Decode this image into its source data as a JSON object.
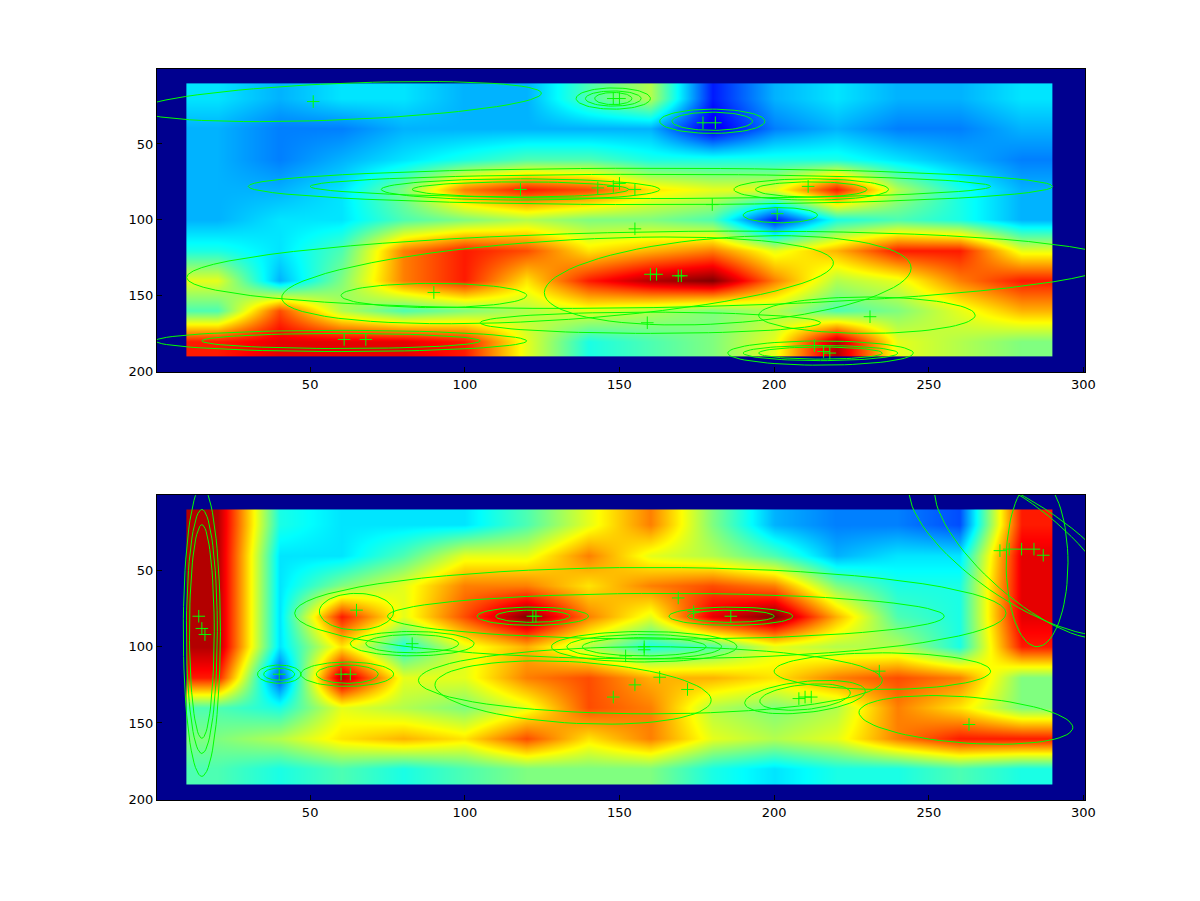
{
  "chart_data": [
    {
      "type": "heatmap",
      "x": [
        20,
        40,
        60,
        80,
        100,
        120,
        140,
        160,
        180,
        200,
        220,
        240,
        260,
        280
      ],
      "y": [
        20,
        40,
        60,
        80,
        100,
        120,
        140,
        160,
        180
      ],
      "cells": [
        [
          0.35,
          0.3,
          0.35,
          0.35,
          0.3,
          0.3,
          0.45,
          0.55,
          0.15,
          0.3,
          0.35,
          0.3,
          0.3,
          0.35
        ],
        [
          0.3,
          0.25,
          0.25,
          0.3,
          0.3,
          0.3,
          0.3,
          0.3,
          0.1,
          0.25,
          0.3,
          0.25,
          0.25,
          0.3
        ],
        [
          0.3,
          0.25,
          0.3,
          0.35,
          0.4,
          0.45,
          0.45,
          0.4,
          0.4,
          0.4,
          0.4,
          0.35,
          0.3,
          0.25
        ],
        [
          0.3,
          0.3,
          0.35,
          0.5,
          0.75,
          0.85,
          0.8,
          0.65,
          0.6,
          0.6,
          0.85,
          0.55,
          0.4,
          0.3
        ],
        [
          0.3,
          0.35,
          0.35,
          0.45,
          0.5,
          0.55,
          0.5,
          0.5,
          0.45,
          0.15,
          0.4,
          0.45,
          0.4,
          0.3
        ],
        [
          0.4,
          0.35,
          0.45,
          0.75,
          0.85,
          0.8,
          0.65,
          0.7,
          0.75,
          0.6,
          0.7,
          0.85,
          0.85,
          0.6
        ],
        [
          0.6,
          0.3,
          0.5,
          0.75,
          0.85,
          0.65,
          0.85,
          0.95,
          1.0,
          0.75,
          0.55,
          0.6,
          0.75,
          0.85
        ],
        [
          0.45,
          0.8,
          0.55,
          0.45,
          0.5,
          0.55,
          0.6,
          0.55,
          0.5,
          0.55,
          0.45,
          0.5,
          0.6,
          0.7
        ],
        [
          0.85,
          0.9,
          0.9,
          0.9,
          0.85,
          0.6,
          0.4,
          0.45,
          0.5,
          0.6,
          0.95,
          0.6,
          0.55,
          0.5
        ]
      ],
      "color_range": [
        0,
        1
      ],
      "xlim": [
        0.5,
        300.5
      ],
      "ylim": [
        200.5,
        0.5
      ],
      "xticks": [
        50,
        100,
        150,
        200,
        250,
        300
      ],
      "yticks": [
        50,
        100,
        150,
        200
      ],
      "color": "#00ff00",
      "marker": "cross",
      "ellipses": [
        {
          "cx": 60,
          "cy": 22,
          "rx": 65,
          "ry": 12,
          "angle": -5
        },
        {
          "cx": 148,
          "cy": 20,
          "rx": 12,
          "ry": 7,
          "angle": 0
        },
        {
          "cx": 148,
          "cy": 20,
          "rx": 9,
          "ry": 5,
          "angle": 0
        },
        {
          "cx": 148,
          "cy": 20,
          "rx": 6,
          "ry": 4,
          "angle": 0
        },
        {
          "cx": 180,
          "cy": 35,
          "rx": 17,
          "ry": 8,
          "angle": 0
        },
        {
          "cx": 180,
          "cy": 35,
          "rx": 13,
          "ry": 6,
          "angle": 0
        },
        {
          "cx": 160,
          "cy": 78,
          "rx": 130,
          "ry": 12,
          "angle": 0
        },
        {
          "cx": 160,
          "cy": 78,
          "rx": 110,
          "ry": 8,
          "angle": 0
        },
        {
          "cx": 118,
          "cy": 80,
          "rx": 45,
          "ry": 7,
          "angle": 0
        },
        {
          "cx": 118,
          "cy": 80,
          "rx": 35,
          "ry": 5,
          "angle": 0
        },
        {
          "cx": 212,
          "cy": 80,
          "rx": 25,
          "ry": 7,
          "angle": 0
        },
        {
          "cx": 212,
          "cy": 80,
          "rx": 18,
          "ry": 5,
          "angle": 0
        },
        {
          "cx": 202,
          "cy": 97,
          "rx": 12,
          "ry": 5,
          "angle": 0
        },
        {
          "cx": 160,
          "cy": 133,
          "rx": 150,
          "ry": 25,
          "angle": -2
        },
        {
          "cx": 130,
          "cy": 140,
          "rx": 90,
          "ry": 26,
          "angle": -8
        },
        {
          "cx": 185,
          "cy": 140,
          "rx": 60,
          "ry": 28,
          "angle": -10
        },
        {
          "cx": 90,
          "cy": 150,
          "rx": 30,
          "ry": 8,
          "angle": 0
        },
        {
          "cx": 60,
          "cy": 180,
          "rx": 60,
          "ry": 7,
          "angle": 0
        },
        {
          "cx": 60,
          "cy": 180,
          "rx": 45,
          "ry": 5,
          "angle": 0
        },
        {
          "cx": 215,
          "cy": 188,
          "rx": 30,
          "ry": 8,
          "angle": 0
        },
        {
          "cx": 215,
          "cy": 188,
          "rx": 25,
          "ry": 5,
          "angle": 0
        },
        {
          "cx": 215,
          "cy": 188,
          "rx": 20,
          "ry": 4,
          "angle": 0
        },
        {
          "cx": 230,
          "cy": 163,
          "rx": 35,
          "ry": 12,
          "angle": 0
        },
        {
          "cx": 160,
          "cy": 168,
          "rx": 55,
          "ry": 7,
          "angle": 0
        }
      ],
      "points": [
        [
          51,
          22
        ],
        [
          148,
          20
        ],
        [
          150,
          20
        ],
        [
          177,
          36
        ],
        [
          181,
          36
        ],
        [
          118,
          80
        ],
        [
          143,
          79
        ],
        [
          148,
          78
        ],
        [
          150,
          76
        ],
        [
          155,
          80
        ],
        [
          180,
          90
        ],
        [
          211,
          78
        ],
        [
          201,
          96
        ],
        [
          155,
          106
        ],
        [
          162,
          136
        ],
        [
          160,
          136
        ],
        [
          169,
          137
        ],
        [
          170,
          137
        ],
        [
          90,
          148
        ],
        [
          159,
          168
        ],
        [
          231,
          164
        ],
        [
          61,
          179
        ],
        [
          68,
          179
        ],
        [
          213,
          183
        ],
        [
          216,
          187
        ],
        [
          218,
          188
        ]
      ]
    },
    {
      "type": "heatmap",
      "x": [
        20,
        40,
        60,
        80,
        100,
        120,
        140,
        160,
        180,
        200,
        220,
        240,
        260,
        280
      ],
      "y": [
        20,
        40,
        60,
        80,
        100,
        120,
        140,
        160,
        180
      ],
      "cells": [
        [
          0.95,
          0.4,
          0.35,
          0.35,
          0.35,
          0.45,
          0.6,
          0.75,
          0.5,
          0.3,
          0.25,
          0.25,
          0.2,
          0.85
        ],
        [
          0.95,
          0.35,
          0.35,
          0.45,
          0.6,
          0.6,
          0.75,
          0.6,
          0.55,
          0.45,
          0.3,
          0.35,
          0.35,
          0.9
        ],
        [
          0.95,
          0.35,
          0.5,
          0.6,
          0.75,
          0.75,
          0.65,
          0.75,
          0.8,
          0.75,
          0.5,
          0.4,
          0.4,
          0.9
        ],
        [
          0.95,
          0.35,
          0.85,
          0.6,
          0.8,
          1.0,
          0.75,
          0.6,
          0.9,
          1.0,
          0.7,
          0.45,
          0.4,
          0.9
        ],
        [
          0.95,
          0.35,
          0.65,
          0.4,
          0.6,
          0.7,
          0.55,
          0.4,
          0.45,
          0.6,
          0.55,
          0.55,
          0.4,
          0.85
        ],
        [
          0.85,
          0.2,
          0.95,
          0.6,
          0.6,
          0.75,
          0.8,
          0.7,
          0.7,
          0.65,
          0.75,
          0.8,
          0.75,
          0.5
        ],
        [
          0.45,
          0.4,
          0.6,
          0.55,
          0.5,
          0.6,
          0.8,
          0.75,
          0.55,
          0.5,
          0.55,
          0.75,
          0.65,
          0.5
        ],
        [
          0.5,
          0.55,
          0.65,
          0.7,
          0.65,
          0.8,
          0.65,
          0.75,
          0.6,
          0.55,
          0.6,
          0.75,
          0.85,
          0.85
        ],
        [
          0.45,
          0.4,
          0.45,
          0.4,
          0.45,
          0.5,
          0.5,
          0.5,
          0.4,
          0.35,
          0.4,
          0.4,
          0.45,
          0.4
        ]
      ],
      "color_range": [
        0,
        1
      ],
      "xlim": [
        0.5,
        300.5
      ],
      "ylim": [
        200.5,
        0.5
      ],
      "xticks": [
        50,
        100,
        150,
        200,
        250,
        300
      ],
      "yticks": [
        50,
        100,
        150,
        200
      ],
      "color": "#00ff00",
      "marker": "cross",
      "ellipses": [
        {
          "cx": 15,
          "cy": 90,
          "rx": 6,
          "ry": 95,
          "angle": 0
        },
        {
          "cx": 15,
          "cy": 90,
          "rx": 5,
          "ry": 80,
          "angle": 0
        },
        {
          "cx": 15,
          "cy": 90,
          "rx": 4,
          "ry": 70,
          "angle": 0
        },
        {
          "cx": 285,
          "cy": 45,
          "rx": 10,
          "ry": 55,
          "angle": 0
        },
        {
          "cx": 282,
          "cy": 40,
          "rx": 18,
          "ry": 60,
          "angle": -25
        },
        {
          "cx": 280,
          "cy": 38,
          "rx": 22,
          "ry": 62,
          "angle": -30
        },
        {
          "cx": 65,
          "cy": 77,
          "rx": 12,
          "ry": 12,
          "angle": 0
        },
        {
          "cx": 160,
          "cy": 78,
          "rx": 115,
          "ry": 30,
          "angle": 0
        },
        {
          "cx": 165,
          "cy": 80,
          "rx": 90,
          "ry": 15,
          "angle": 0
        },
        {
          "cx": 122,
          "cy": 80,
          "rx": 18,
          "ry": 6,
          "angle": 0
        },
        {
          "cx": 122,
          "cy": 80,
          "rx": 12,
          "ry": 4,
          "angle": 0
        },
        {
          "cx": 186,
          "cy": 80,
          "rx": 20,
          "ry": 6,
          "angle": 0
        },
        {
          "cx": 186,
          "cy": 80,
          "rx": 14,
          "ry": 4,
          "angle": 0
        },
        {
          "cx": 83,
          "cy": 98,
          "rx": 20,
          "ry": 8,
          "angle": 0
        },
        {
          "cx": 83,
          "cy": 98,
          "rx": 15,
          "ry": 6,
          "angle": 0
        },
        {
          "cx": 158,
          "cy": 100,
          "rx": 30,
          "ry": 10,
          "angle": 0
        },
        {
          "cx": 158,
          "cy": 100,
          "rx": 25,
          "ry": 8,
          "angle": 0
        },
        {
          "cx": 158,
          "cy": 100,
          "rx": 20,
          "ry": 6,
          "angle": 0
        },
        {
          "cx": 40,
          "cy": 118,
          "rx": 7,
          "ry": 6,
          "angle": 0
        },
        {
          "cx": 40,
          "cy": 118,
          "rx": 5,
          "ry": 4,
          "angle": 0
        },
        {
          "cx": 62,
          "cy": 118,
          "rx": 15,
          "ry": 8,
          "angle": 0
        },
        {
          "cx": 62,
          "cy": 118,
          "rx": 10,
          "ry": 6,
          "angle": 0
        },
        {
          "cx": 160,
          "cy": 122,
          "rx": 75,
          "ry": 22,
          "angle": 0
        },
        {
          "cx": 135,
          "cy": 130,
          "rx": 45,
          "ry": 20,
          "angle": 8
        },
        {
          "cx": 210,
          "cy": 133,
          "rx": 20,
          "ry": 10,
          "angle": -15
        },
        {
          "cx": 210,
          "cy": 133,
          "rx": 15,
          "ry": 8,
          "angle": -15
        },
        {
          "cx": 235,
          "cy": 116,
          "rx": 35,
          "ry": 12,
          "angle": 0
        },
        {
          "cx": 262,
          "cy": 148,
          "rx": 35,
          "ry": 15,
          "angle": 10
        }
      ],
      "points": [
        [
          14,
          80
        ],
        [
          15,
          88
        ],
        [
          16,
          92
        ],
        [
          273,
          37
        ],
        [
          276,
          36
        ],
        [
          280,
          36
        ],
        [
          284,
          36
        ],
        [
          287,
          40
        ],
        [
          65,
          76
        ],
        [
          122,
          80
        ],
        [
          123,
          80
        ],
        [
          186,
          80
        ],
        [
          169,
          68
        ],
        [
          174,
          77
        ],
        [
          83,
          98
        ],
        [
          158,
          100
        ],
        [
          158,
          102
        ],
        [
          152,
          106
        ],
        [
          40,
          118
        ],
        [
          60,
          118
        ],
        [
          63,
          118
        ],
        [
          148,
          133
        ],
        [
          155,
          125
        ],
        [
          163,
          120
        ],
        [
          172,
          128
        ],
        [
          208,
          134
        ],
        [
          210,
          133
        ],
        [
          212,
          133
        ],
        [
          234,
          116
        ],
        [
          263,
          151
        ]
      ]
    }
  ]
}
